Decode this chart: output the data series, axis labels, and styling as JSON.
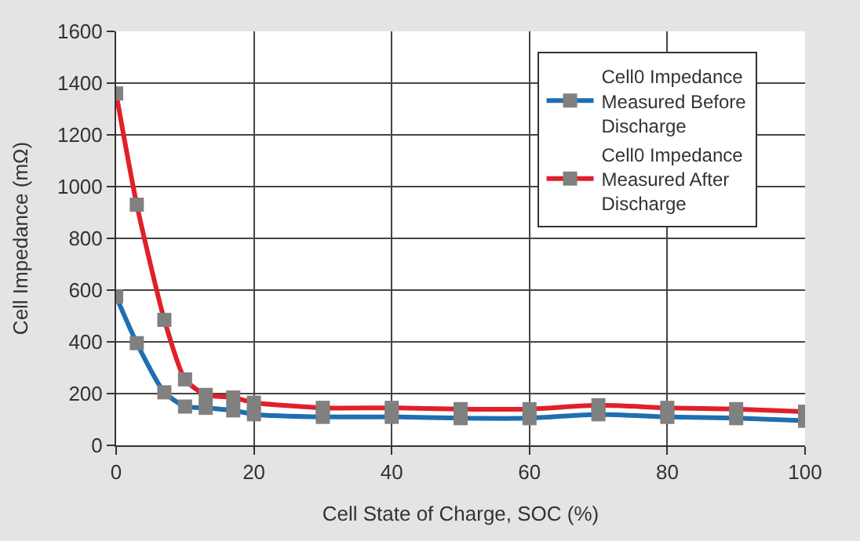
{
  "chart_data": {
    "type": "line",
    "xlabel": "Cell State of Charge, SOC (%)",
    "ylabel": "Cell Impedance (mΩ)",
    "x": [
      0,
      3,
      7,
      10,
      13,
      17,
      20,
      30,
      40,
      50,
      60,
      70,
      80,
      90,
      100
    ],
    "series": [
      {
        "name": "Cell0 Impedance Measured Before Discharge",
        "color": "#1f6fb0",
        "values": [
          575,
          395,
          205,
          150,
          145,
          135,
          120,
          110,
          110,
          105,
          105,
          120,
          110,
          105,
          95
        ]
      },
      {
        "name": "Cell0 Impedance Measured After Discharge",
        "color": "#e0202a",
        "values": [
          1360,
          930,
          485,
          255,
          195,
          185,
          165,
          145,
          145,
          140,
          140,
          155,
          145,
          140,
          130
        ]
      }
    ],
    "xlim": [
      0,
      100
    ],
    "xticks": [
      0,
      20,
      40,
      60,
      80,
      100
    ],
    "ylim": [
      0,
      1600
    ],
    "yticks": [
      0,
      200,
      400,
      600,
      800,
      1000,
      1200,
      1400,
      1600
    ],
    "grid": true,
    "legend": "top right",
    "marker": "square",
    "line_style": "solid"
  }
}
